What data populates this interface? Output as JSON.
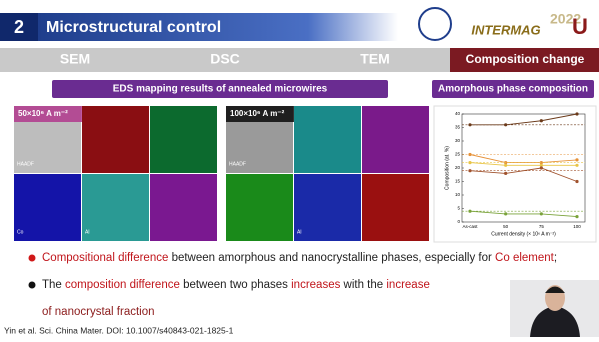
{
  "header": {
    "number": "2",
    "title": "Microstructural control",
    "logo_text": "INTERMAG",
    "logo_year": "2022"
  },
  "tabs": [
    "SEM",
    "DSC",
    "TEM",
    "Composition change"
  ],
  "labels": {
    "eds": "EDS mapping results of annealed microwires",
    "amorphous": "Amorphous phase composition"
  },
  "panels": [
    {
      "label": "50×10⁶ A m⁻²",
      "tiles": [
        "HAADF",
        null,
        null,
        "Co",
        "Al",
        null
      ]
    },
    {
      "label": "100×10⁶ A m⁻²",
      "tiles": [
        "HAADF",
        null,
        null,
        null,
        "Al",
        null
      ]
    }
  ],
  "bullets": [
    [
      "Compositional difference",
      " between amorphous and nanocrystalline phases, especially for ",
      "Co element",
      ";"
    ],
    [
      "The ",
      "composition difference",
      " between two phases ",
      "increases",
      " with the ",
      "increase",
      "of nanocrystal fraction"
    ]
  ],
  "citation": "Yin et al. Sci. China Mater. DOI: 10.1007/s40843-021-1825-1",
  "chart_data": {
    "type": "line",
    "x_label": "Current density (× 10⁶ A m⁻²)",
    "y_label": "Composition (at. %)",
    "categories": [
      "As-cast",
      "50",
      "75",
      "100"
    ],
    "ylim": [
      0,
      40
    ],
    "yticks": [
      0,
      5,
      10,
      15,
      20,
      25,
      30,
      35,
      40
    ],
    "series": [
      {
        "color": "#6b3a1a",
        "values": [
          36,
          36,
          37.5,
          40
        ]
      },
      {
        "color": "#e69138",
        "values": [
          25,
          22,
          22,
          23
        ]
      },
      {
        "color": "#e8c547",
        "values": [
          22,
          21,
          21,
          21
        ]
      },
      {
        "color": "#a0522d",
        "values": [
          19,
          18,
          20,
          15
        ]
      },
      {
        "color": "#7aa33a",
        "values": [
          4,
          3,
          3,
          2
        ]
      }
    ]
  }
}
